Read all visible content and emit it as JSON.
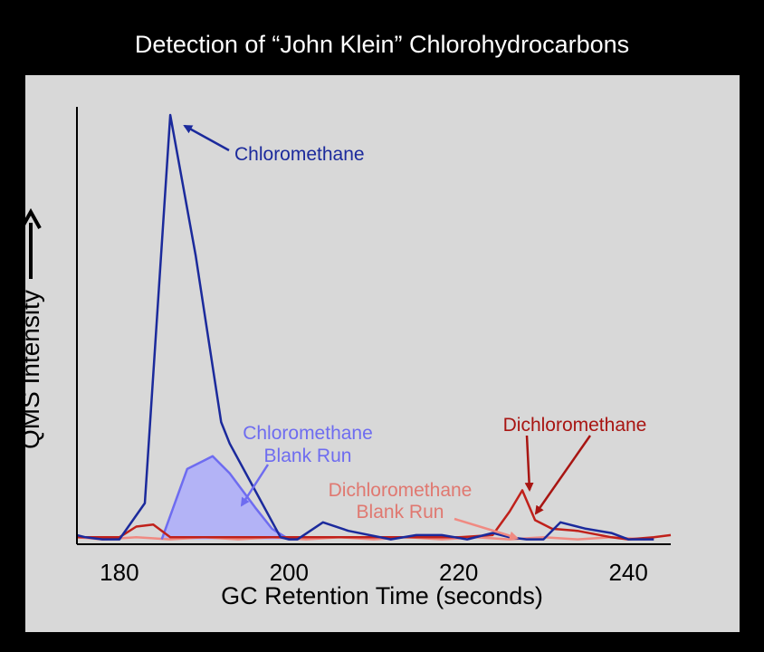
{
  "title": "Detection of “John Klein” Chlorohydrocarbons",
  "chart_data": {
    "type": "line",
    "title": "Detection of “John Klein” Chlorohydrocarbons",
    "xlabel": "GC Retention Time (seconds)",
    "ylabel": "QMS Intensity",
    "xlim": [
      175,
      245
    ],
    "ylim": [
      0,
      100
    ],
    "xticks": [
      "180",
      "200",
      "220",
      "240"
    ],
    "xtick_values": [
      180,
      200,
      220,
      240
    ],
    "grid": false,
    "colors": {
      "chloromethane": "#1b2a9c",
      "chloromethane_blank": "#6e6cf0",
      "chloromethane_blank_fill": "#b3b3f6",
      "dichloromethane": "#c0211b",
      "dichloromethane_blank": "#f08a82",
      "annotation_chloromethane": "#1b2a9c",
      "annotation_chloromethane_blank": "#6e6cf0",
      "annotation_dichloromethane": "#a81512",
      "annotation_dichloromethane_blank": "#e07870"
    },
    "series": [
      {
        "key": "chloromethane",
        "x": [
          175,
          176,
          178,
          180,
          183,
          186,
          189,
          192,
          193,
          196,
          199,
          200,
          201,
          204,
          207,
          212,
          215,
          218,
          221,
          224,
          226,
          228,
          230,
          232,
          235,
          238,
          240,
          243
        ],
        "values": [
          1.5,
          1,
          0.5,
          0.5,
          9,
          100,
          67,
          28,
          23,
          12,
          1,
          0.5,
          0.5,
          4.5,
          2.5,
          0.5,
          1.5,
          1.5,
          0.5,
          2,
          1,
          0.5,
          0.5,
          4.5,
          3,
          2,
          0.5,
          0.5
        ]
      },
      {
        "key": "chloromethane_blank",
        "x": [
          185,
          188,
          191,
          193,
          196,
          198,
          200
        ],
        "values": [
          0.5,
          17,
          20,
          16,
          8,
          3,
          0.5
        ]
      },
      {
        "key": "dichloromethane",
        "x": [
          175,
          180,
          182,
          184,
          186,
          190,
          200,
          210,
          220,
          224,
          226,
          227.5,
          229,
          231,
          234,
          238,
          240,
          243,
          245
        ],
        "values": [
          1,
          1,
          3.5,
          4,
          1,
          1,
          1,
          1,
          1,
          1.5,
          7,
          12,
          5,
          3,
          2.5,
          1,
          0.5,
          1,
          1.5
        ]
      },
      {
        "key": "dichloromethane_blank",
        "x": [
          175,
          178,
          182,
          186,
          190,
          194,
          198,
          202,
          206,
          210,
          214,
          218,
          222,
          226,
          230,
          234,
          238,
          242
        ],
        "values": [
          1,
          0.5,
          1,
          0.5,
          1,
          0.5,
          1,
          0.5,
          1,
          0.5,
          1,
          0.5,
          1,
          0.5,
          1,
          0.5,
          1,
          0.5
        ]
      }
    ],
    "annotations": {
      "chloromethane": "Chloromethane",
      "chloromethane_blank_line1": "Chloromethane",
      "chloromethane_blank_line2": "Blank Run",
      "dichloromethane": "Dichloromethane",
      "dichloromethane_blank_line1": "Dichloromethane",
      "dichloromethane_blank_line2": "Blank Run"
    }
  }
}
